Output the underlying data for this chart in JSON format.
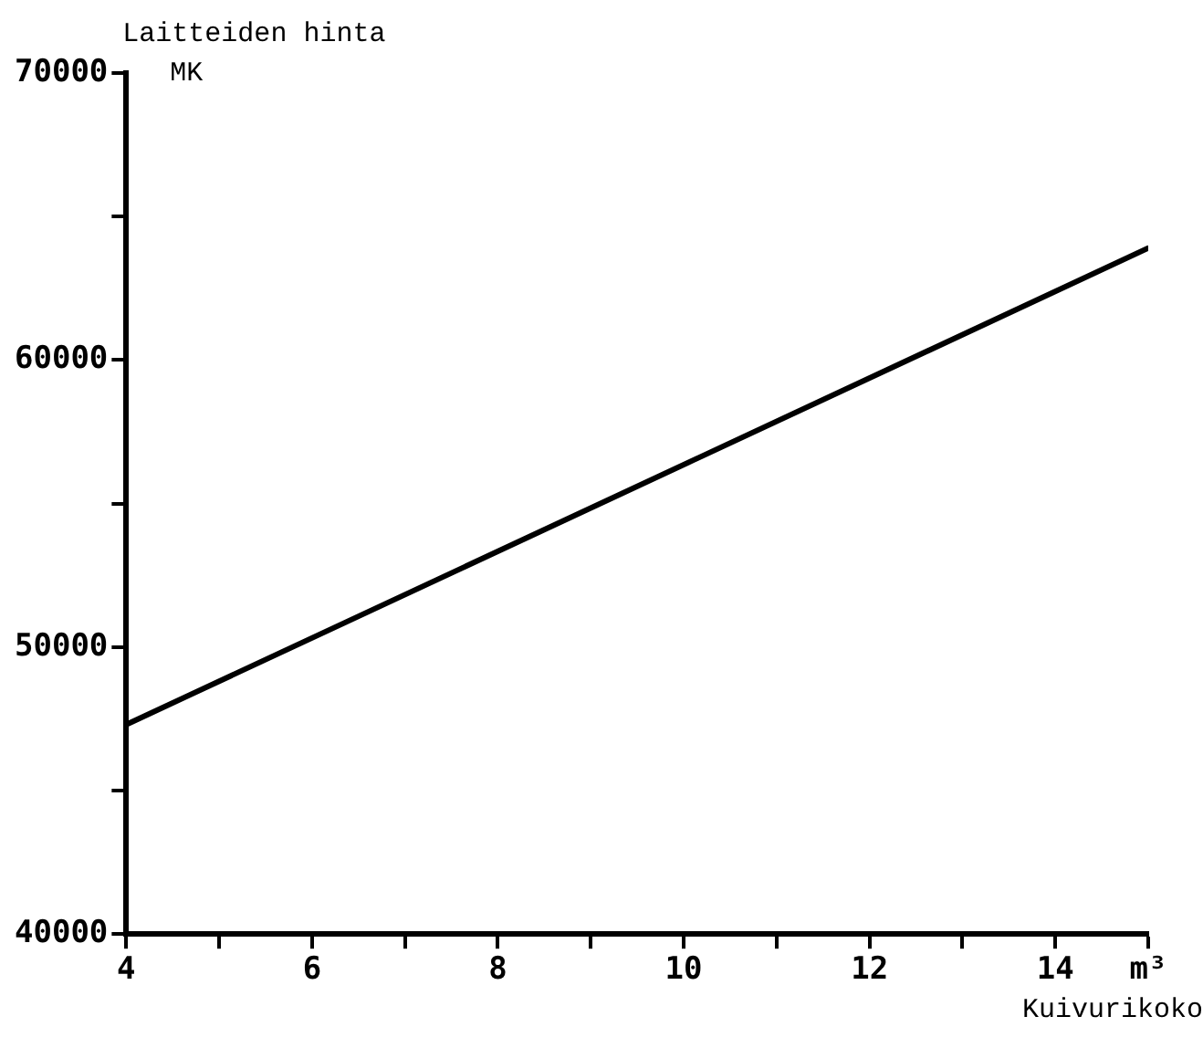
{
  "chart_data": {
    "type": "line",
    "xlabel": "Kuivurikoko",
    "ylabel": "Laitteiden hinta",
    "annotations": [
      "MK"
    ],
    "x": [
      4,
      15
    ],
    "series": [
      {
        "color": "#000000",
        "values": [
          47300,
          63900
        ]
      }
    ],
    "xlim": [
      4,
      15
    ],
    "xticks": [
      4,
      {
        "value": 5,
        "label": null
      },
      6,
      {
        "value": 7,
        "label": null
      },
      8,
      {
        "value": 9,
        "label": null
      },
      10,
      {
        "value": 11,
        "label": null
      },
      12,
      {
        "value": 13,
        "label": null
      },
      14,
      {
        "value": 15,
        "label": "m³"
      }
    ],
    "ylim": [
      40000,
      70000
    ],
    "yticks": [
      40000,
      {
        "value": 45000,
        "label": null
      },
      50000,
      {
        "value": 55000,
        "label": null
      },
      60000,
      {
        "value": 65000,
        "label": null
      },
      70000
    ],
    "grid": false,
    "legend": false,
    "marker": "none",
    "line_style": "solid"
  }
}
